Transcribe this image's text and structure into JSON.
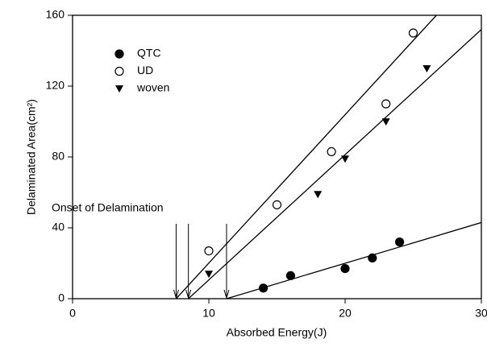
{
  "chart_data": {
    "type": "scatter",
    "xlabel": "Absorbed Energy(J)",
    "ylabel": "Delaminated Area(cm²)",
    "annotation": "Onset of Delamination",
    "xlim": [
      0,
      30
    ],
    "xticks": [
      0,
      10,
      20,
      30
    ],
    "ylim": [
      0,
      160
    ],
    "yticks": [
      0,
      40,
      80,
      120,
      160
    ],
    "legend": "upper left",
    "series": [
      {
        "name": "QTC",
        "color": "#000000",
        "marker": "filled-circle",
        "x": [
          14,
          16,
          20,
          22,
          24
        ],
        "values": [
          6,
          13,
          17,
          23,
          32
        ],
        "fit": {
          "x": [
            11.3,
            30
          ],
          "values": [
            0,
            43
          ]
        }
      },
      {
        "name": "UD",
        "color": "#000000",
        "marker": "open-circle",
        "x": [
          10,
          15,
          19,
          23,
          25
        ],
        "values": [
          27,
          53,
          83,
          110,
          150
        ],
        "fit": {
          "x": [
            7.6,
            26.7
          ],
          "values": [
            0,
            160
          ]
        }
      },
      {
        "name": "woven",
        "color": "#000000",
        "marker": "triangle-down",
        "x": [
          10,
          18,
          20,
          23,
          26
        ],
        "values": [
          14,
          59,
          79,
          100,
          130
        ],
        "fit": {
          "x": [
            8.5,
            30
          ],
          "values": [
            0,
            152
          ]
        }
      }
    ]
  }
}
